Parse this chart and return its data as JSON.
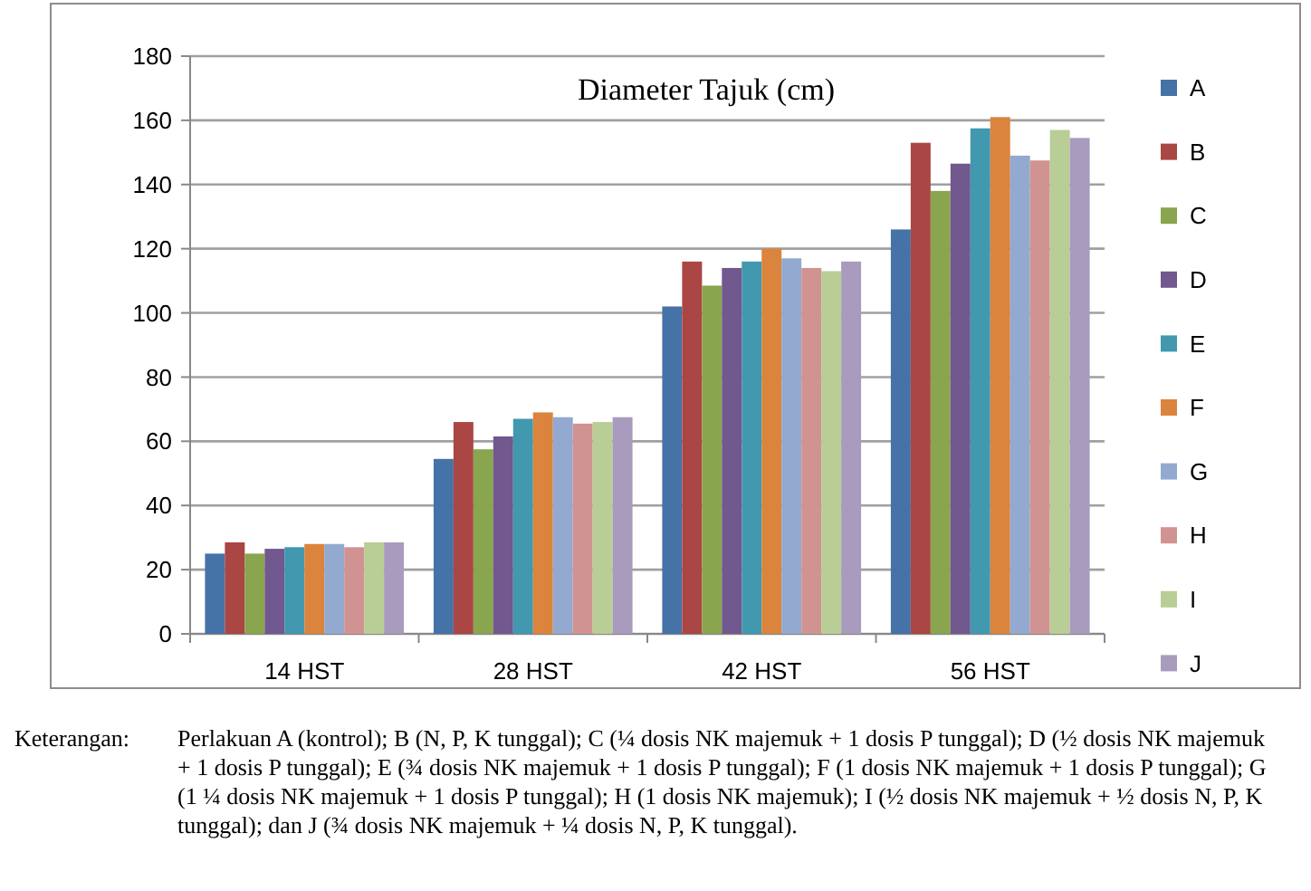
{
  "chart_data": {
    "type": "bar",
    "title": "Diameter Tajuk (cm)",
    "categories": [
      "14 HST",
      "28 HST",
      "42 HST",
      "56 HST"
    ],
    "series": [
      {
        "name": "A",
        "color": "#4572a7",
        "values": [
          25,
          54.5,
          102,
          126
        ]
      },
      {
        "name": "B",
        "color": "#aa4643",
        "values": [
          28.5,
          66,
          116,
          153
        ]
      },
      {
        "name": "C",
        "color": "#89a54e",
        "values": [
          25,
          57.5,
          108.5,
          138
        ]
      },
      {
        "name": "D",
        "color": "#71588f",
        "values": [
          26.5,
          61.5,
          114,
          146.5
        ]
      },
      {
        "name": "E",
        "color": "#4198af",
        "values": [
          27,
          67,
          116,
          157.5
        ]
      },
      {
        "name": "F",
        "color": "#db843d",
        "values": [
          28,
          69,
          120,
          161
        ]
      },
      {
        "name": "G",
        "color": "#93a9cf",
        "values": [
          28,
          67.5,
          117,
          149
        ]
      },
      {
        "name": "H",
        "color": "#d19392",
        "values": [
          27,
          65.5,
          114,
          147.5
        ]
      },
      {
        "name": "I",
        "color": "#b9cd96",
        "values": [
          28.5,
          66,
          113,
          157
        ]
      },
      {
        "name": "J",
        "color": "#a99bbd",
        "values": [
          28.5,
          67.5,
          116,
          154.5
        ]
      }
    ],
    "ylim": [
      0,
      180
    ],
    "yticks": [
      0,
      20,
      40,
      60,
      80,
      100,
      120,
      140,
      160,
      180
    ],
    "grid": "y",
    "legend": "right",
    "annotations": [
      "Keterangan: Perlakuan A (kontrol); B (N, P, K tunggal); C (¼ dosis NK majemuk + 1 dosis P tunggal); D (½ dosis NK majemuk + 1 dosis P tunggal); E (¾ dosis NK majemuk + 1 dosis P tunggal); F (1 dosis NK majemuk + 1 dosis P tunggal); G (1 ¼ dosis NK majemuk + 1 dosis P tunggal); H (1 dosis NK majemuk); I (½ dosis NK majemuk + ½ dosis N, P, K tunggal); dan J (¾ dosis NK majemuk + ¼ dosis N, P, K tunggal)."
    ]
  }
}
